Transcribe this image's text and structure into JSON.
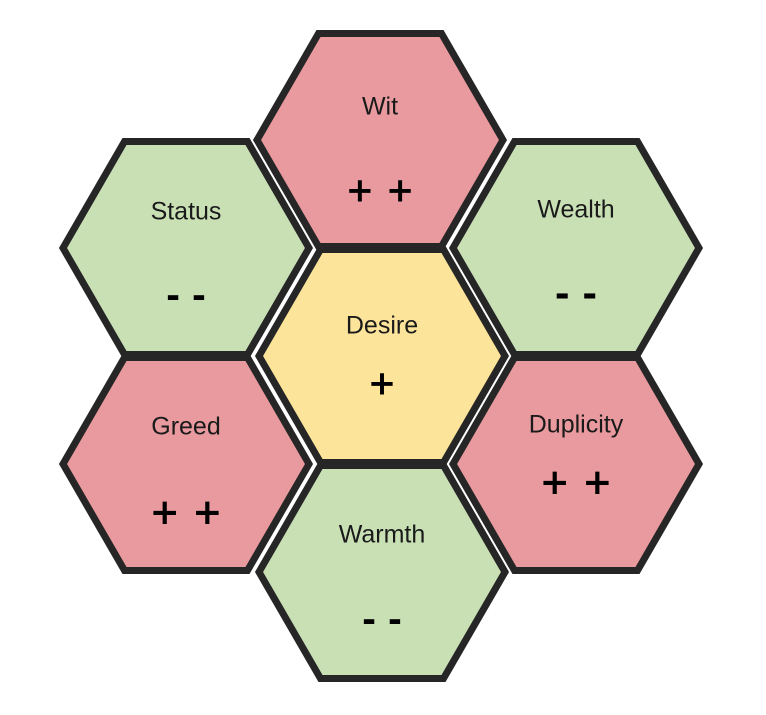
{
  "diagram": {
    "colors": {
      "red": "#e89a9e",
      "green": "#c9e0b5",
      "yellow": "#fce49a",
      "border": "#262626"
    },
    "hexes": [
      {
        "id": "wit",
        "title": "Wit",
        "sign": "+ +",
        "color": "red"
      },
      {
        "id": "status",
        "title": "Status",
        "sign": "- -",
        "color": "green"
      },
      {
        "id": "wealth",
        "title": "Wealth",
        "sign": "- -",
        "color": "green"
      },
      {
        "id": "desire",
        "title": "Desire",
        "sign": "+",
        "color": "yellow"
      },
      {
        "id": "greed",
        "title": "Greed",
        "sign": "+ +",
        "color": "red"
      },
      {
        "id": "duplicity",
        "title": "Duplicity",
        "sign": "+ +",
        "color": "red"
      },
      {
        "id": "warmth",
        "title": "Warmth",
        "sign": "- -",
        "color": "green"
      }
    ]
  }
}
